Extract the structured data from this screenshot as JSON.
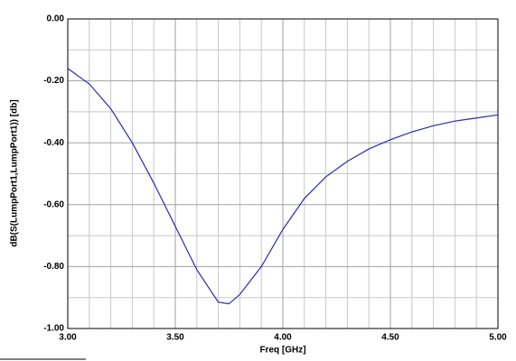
{
  "chart_data": {
    "type": "line",
    "xlabel": "Freq [GHz]",
    "ylabel": "dB(S(LumpPort1,LumpPort1)) [db]",
    "x": [
      3.0,
      3.1,
      3.2,
      3.3,
      3.4,
      3.5,
      3.6,
      3.7,
      3.75,
      3.8,
      3.9,
      4.0,
      4.1,
      4.2,
      4.3,
      4.4,
      4.5,
      4.6,
      4.7,
      4.8,
      4.9,
      5.0
    ],
    "series": [
      {
        "color": "#2b2bb0",
        "values": [
          -0.16,
          -0.21,
          -0.29,
          -0.4,
          -0.53,
          -0.67,
          -0.81,
          -0.915,
          -0.92,
          -0.89,
          -0.8,
          -0.68,
          -0.58,
          -0.51,
          -0.46,
          -0.42,
          -0.39,
          -0.365,
          -0.345,
          -0.33,
          -0.32,
          -0.31
        ]
      }
    ],
    "xlim": [
      3.0,
      5.0
    ],
    "ylim": [
      -1.0,
      0.0
    ],
    "xticks": [
      {
        "value": 3.0,
        "label": "3.00"
      },
      {
        "value": 3.5,
        "label": "3.50"
      },
      {
        "value": 4.0,
        "label": "4.00"
      },
      {
        "value": 4.5,
        "label": "4.50"
      },
      {
        "value": 5.0,
        "label": "5.00"
      }
    ],
    "yticks": [
      {
        "value": -1.0,
        "label": "-1.00"
      },
      {
        "value": -0.8,
        "label": "-0.80"
      },
      {
        "value": -0.6,
        "label": "-0.60"
      },
      {
        "value": -0.4,
        "label": "-0.40"
      },
      {
        "value": -0.2,
        "label": "-0.20"
      },
      {
        "value": 0.0,
        "label": "0.00"
      }
    ],
    "xminorticks": [
      3.1,
      3.2,
      3.3,
      3.4,
      3.6,
      3.7,
      3.8,
      3.9,
      4.1,
      4.2,
      4.3,
      4.4,
      4.6,
      4.7,
      4.8,
      4.9
    ],
    "yminorticks": [
      -0.9,
      -0.7,
      -0.5,
      -0.3,
      -0.1
    ],
    "grid": true
  }
}
